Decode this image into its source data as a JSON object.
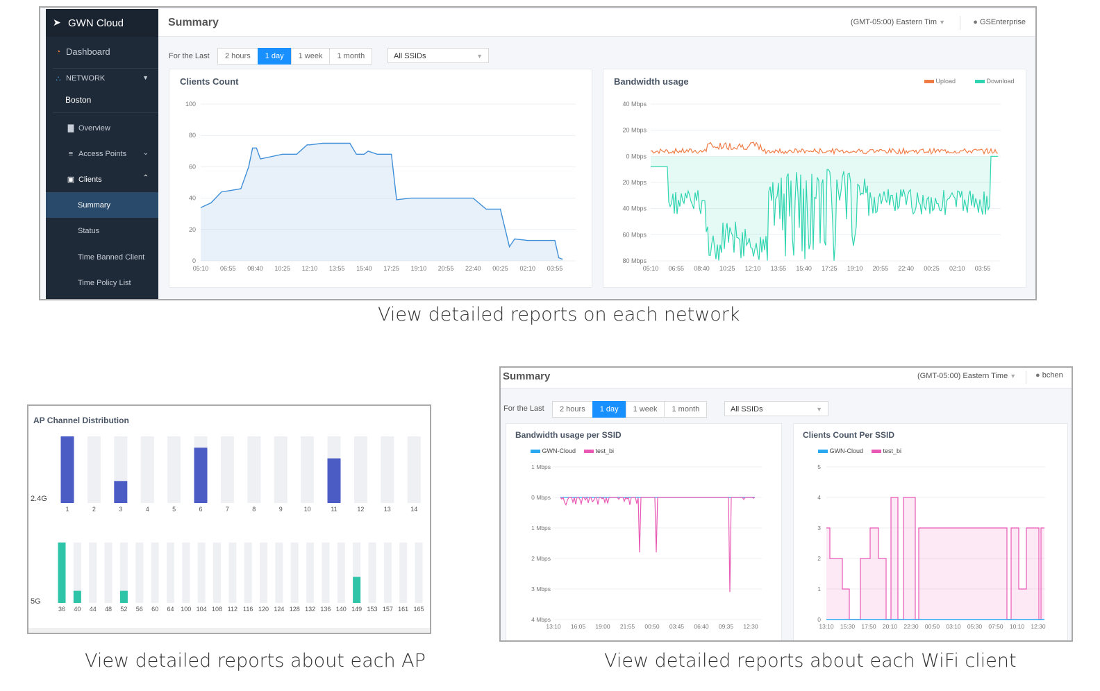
{
  "colors": {
    "sidebar_bg": "#1f2a38",
    "accent_blue": "#1890ff",
    "clients_line": "#3f8fd8",
    "upload": "#f07c45",
    "download": "#2fd5b0",
    "channel_24g": "#4b5cc4",
    "channel_5g": "#2ec4a8",
    "gwn_cloud": "#2aa8f0",
    "test_bi": "#e858b4"
  },
  "network_view": {
    "brand": "GWN Cloud",
    "page_title": "Summary",
    "timezone": "(GMT-05:00) Eastern Tim",
    "user": "GSEnterprise",
    "sidebar": {
      "dashboard": "Dashboard",
      "network_label": "NETWORK",
      "network_name": "Boston",
      "items": [
        "Overview",
        "Access Points",
        "Clients",
        "Summary",
        "Status",
        "Time Banned Client",
        "Time Policy List"
      ]
    },
    "filter": {
      "label": "For the Last",
      "ranges": [
        "2 hours",
        "1 day",
        "1 week",
        "1 month"
      ],
      "active_range": "1 day",
      "ssid": "All SSIDs"
    },
    "clients_chart": {
      "title": "Clients Count",
      "y_ticks": [
        "100",
        "80",
        "60",
        "40",
        "20",
        "0"
      ],
      "x_ticks": [
        "05:10",
        "06:55",
        "08:40",
        "10:25",
        "12:10",
        "13:55",
        "15:40",
        "17:25",
        "19:10",
        "20:55",
        "22:40",
        "00:25",
        "02:10",
        "03:55"
      ]
    },
    "bandwidth_chart": {
      "title": "Bandwidth usage",
      "legend": [
        "Upload",
        "Download"
      ],
      "y_ticks": [
        "40 Mbps",
        "20 Mbps",
        "0 Mbps",
        "20 Mbps",
        "40 Mbps",
        "60 Mbps",
        "80 Mbps"
      ],
      "x_ticks": [
        "05:10",
        "06:55",
        "08:40",
        "10:25",
        "12:10",
        "13:55",
        "15:40",
        "17:25",
        "19:10",
        "20:55",
        "22:40",
        "00:25",
        "02:10",
        "03:55"
      ]
    },
    "caption": "View detailed reports on each network"
  },
  "ap_view": {
    "title": "AP Channel Distribution",
    "band_24g": "2.4G",
    "band_5g": "5G",
    "caption": "View detailed reports about each AP"
  },
  "client_view": {
    "page_title": "Summary",
    "timezone": "(GMT-05:00) Eastern Time",
    "user": "bchen",
    "filter": {
      "label": "For the Last",
      "ranges": [
        "2 hours",
        "1 day",
        "1 week",
        "1 month"
      ],
      "active_range": "1 day",
      "ssid": "All SSIDs"
    },
    "bandwidth_ssid": {
      "title": "Bandwidth usage per SSID",
      "legend": [
        "GWN-Cloud",
        "test_bi"
      ],
      "y_ticks": [
        "1 Mbps",
        "0 Mbps",
        "1 Mbps",
        "2 Mbps",
        "3 Mbps",
        "4 Mbps"
      ],
      "x_ticks": [
        "13:10",
        "16:05",
        "19:00",
        "21:55",
        "00:50",
        "03:45",
        "06:40",
        "09:35",
        "12:30"
      ]
    },
    "clients_ssid": {
      "title": "Clients Count Per SSID",
      "legend": [
        "GWN-Cloud",
        "test_bi"
      ],
      "y_ticks": [
        "5",
        "4",
        "3",
        "2",
        "1",
        "0"
      ],
      "x_ticks": [
        "13:10",
        "15:30",
        "17:50",
        "20:10",
        "22:30",
        "00:50",
        "03:10",
        "05:30",
        "07:50",
        "10:10",
        "12:30"
      ]
    },
    "caption": "View detailed reports about each WiFi client"
  },
  "chart_data": [
    {
      "type": "area",
      "title": "Clients Count",
      "ylim": [
        0,
        100
      ],
      "x": [
        "05:10",
        "05:50",
        "06:30",
        "07:10",
        "07:45",
        "08:15",
        "08:30",
        "08:45",
        "09:00",
        "10:25",
        "11:20",
        "12:00",
        "12:10",
        "13:00",
        "13:55",
        "14:20",
        "14:45",
        "15:10",
        "15:40",
        "15:55",
        "16:30",
        "17:25",
        "17:45",
        "18:40",
        "19:10",
        "20:20",
        "20:55",
        "22:40",
        "23:30",
        "00:25",
        "01:00",
        "01:20",
        "02:10",
        "03:30",
        "03:55",
        "04:10",
        "04:25"
      ],
      "values": [
        34,
        37,
        44,
        45,
        46,
        60,
        72,
        72,
        65,
        68,
        68,
        74,
        74,
        75,
        75,
        75,
        75,
        68,
        68,
        70,
        68,
        68,
        39,
        40,
        40,
        40,
        40,
        40,
        33,
        33,
        9,
        14,
        13,
        13,
        13,
        2,
        1
      ]
    },
    {
      "type": "line",
      "title": "Bandwidth usage",
      "series": [
        {
          "name": "Upload",
          "approx_mbps": 3,
          "peak_mbps": 10
        },
        {
          "name": "Download",
          "approx_mbps": -40,
          "peak_mbps": -80
        }
      ],
      "ylim": [
        -80,
        40
      ]
    },
    {
      "type": "bar",
      "title": "AP Channel Distribution",
      "band": "2.4G",
      "categories": [
        "1",
        "2",
        "3",
        "4",
        "5",
        "6",
        "7",
        "8",
        "9",
        "10",
        "11",
        "12",
        "13",
        "14"
      ],
      "values": [
        1.0,
        0,
        0.33,
        0,
        0,
        0.83,
        0,
        0,
        0,
        0,
        0.67,
        0,
        0,
        0
      ]
    },
    {
      "type": "bar",
      "band": "5G",
      "categories": [
        "36",
        "40",
        "44",
        "48",
        "52",
        "56",
        "60",
        "64",
        "100",
        "104",
        "108",
        "112",
        "116",
        "120",
        "124",
        "128",
        "132",
        "136",
        "140",
        "149",
        "153",
        "157",
        "161",
        "165"
      ],
      "values": [
        1.0,
        0.2,
        0,
        0,
        0.2,
        0,
        0,
        0,
        0,
        0,
        0,
        0,
        0,
        0,
        0,
        0,
        0,
        0,
        0,
        0.43,
        0,
        0,
        0,
        0
      ]
    },
    {
      "type": "line",
      "title": "Bandwidth usage per SSID",
      "series": [
        {
          "name": "GWN-Cloud",
          "approx_mbps": 0
        },
        {
          "name": "test_bi",
          "approx_mbps": 0,
          "dip_mbps": [
            -1.8,
            -1.8,
            -3.1
          ]
        }
      ]
    },
    {
      "type": "area",
      "title": "Clients Count Per SSID",
      "ylim": [
        0,
        5
      ],
      "x": [
        "13:10",
        "15:30",
        "17:50",
        "20:10",
        "22:30",
        "00:50",
        "03:10",
        "05:30",
        "07:50",
        "10:10",
        "12:30"
      ],
      "series": [
        {
          "name": "GWN-Cloud",
          "values": [
            0,
            0,
            0,
            0,
            0,
            0,
            0,
            0,
            0,
            0,
            0
          ]
        },
        {
          "name": "test_bi",
          "values": [
            3,
            1,
            3,
            4,
            3,
            3,
            3,
            3,
            3,
            1,
            3
          ]
        }
      ]
    }
  ]
}
